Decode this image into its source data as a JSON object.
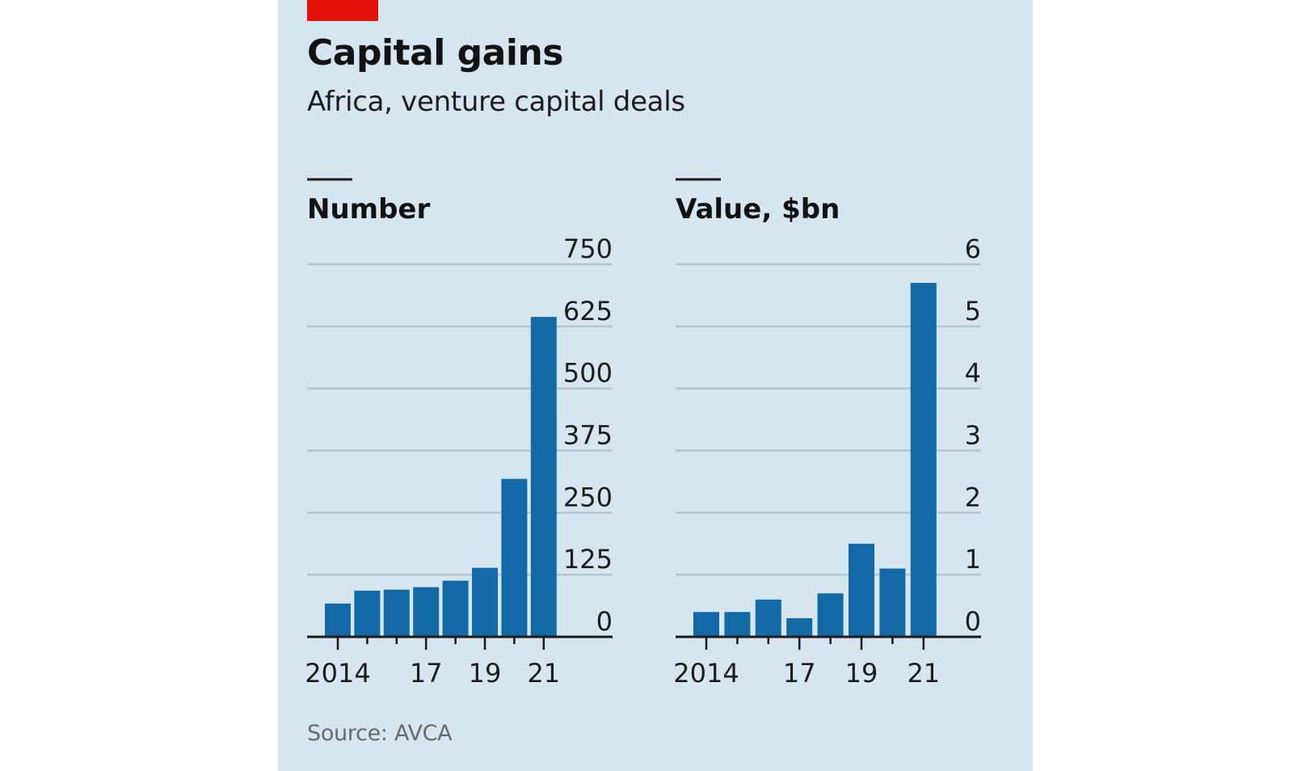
{
  "header": {
    "title": "Capital gains",
    "subtitle": "Africa, venture capital deals"
  },
  "footer": {
    "source": "Source: AVCA"
  },
  "colors": {
    "background": "#d6e6f0",
    "bar": "#1269a5",
    "accent": "#e3120b",
    "grid": "#b4c4cf"
  },
  "chart_data": [
    {
      "type": "bar",
      "title": "Number",
      "categories": [
        "2014",
        "2015",
        "2016",
        "2017",
        "2018",
        "2019",
        "2020",
        "2021"
      ],
      "x_tick_labels": [
        "2014",
        "17",
        "19",
        "21"
      ],
      "x_tick_label_years": [
        2014,
        2017,
        2019,
        2021
      ],
      "values": [
        67,
        93,
        95,
        100,
        113,
        139,
        318,
        644
      ],
      "ylim": [
        0,
        750
      ],
      "yticks": [
        0,
        125,
        250,
        375,
        500,
        625,
        750
      ],
      "grid": true,
      "y_axis_position": "right"
    },
    {
      "type": "bar",
      "title": "Value, $bn",
      "categories": [
        "2014",
        "2015",
        "2016",
        "2017",
        "2018",
        "2019",
        "2020",
        "2021"
      ],
      "x_tick_labels": [
        "2014",
        "17",
        "19",
        "21"
      ],
      "x_tick_label_years": [
        2014,
        2017,
        2019,
        2021
      ],
      "values": [
        0.4,
        0.4,
        0.6,
        0.3,
        0.7,
        1.5,
        1.1,
        5.7
      ],
      "ylim": [
        0,
        6
      ],
      "yticks": [
        0,
        1,
        2,
        3,
        4,
        5,
        6
      ],
      "grid": true,
      "y_axis_position": "right"
    }
  ]
}
